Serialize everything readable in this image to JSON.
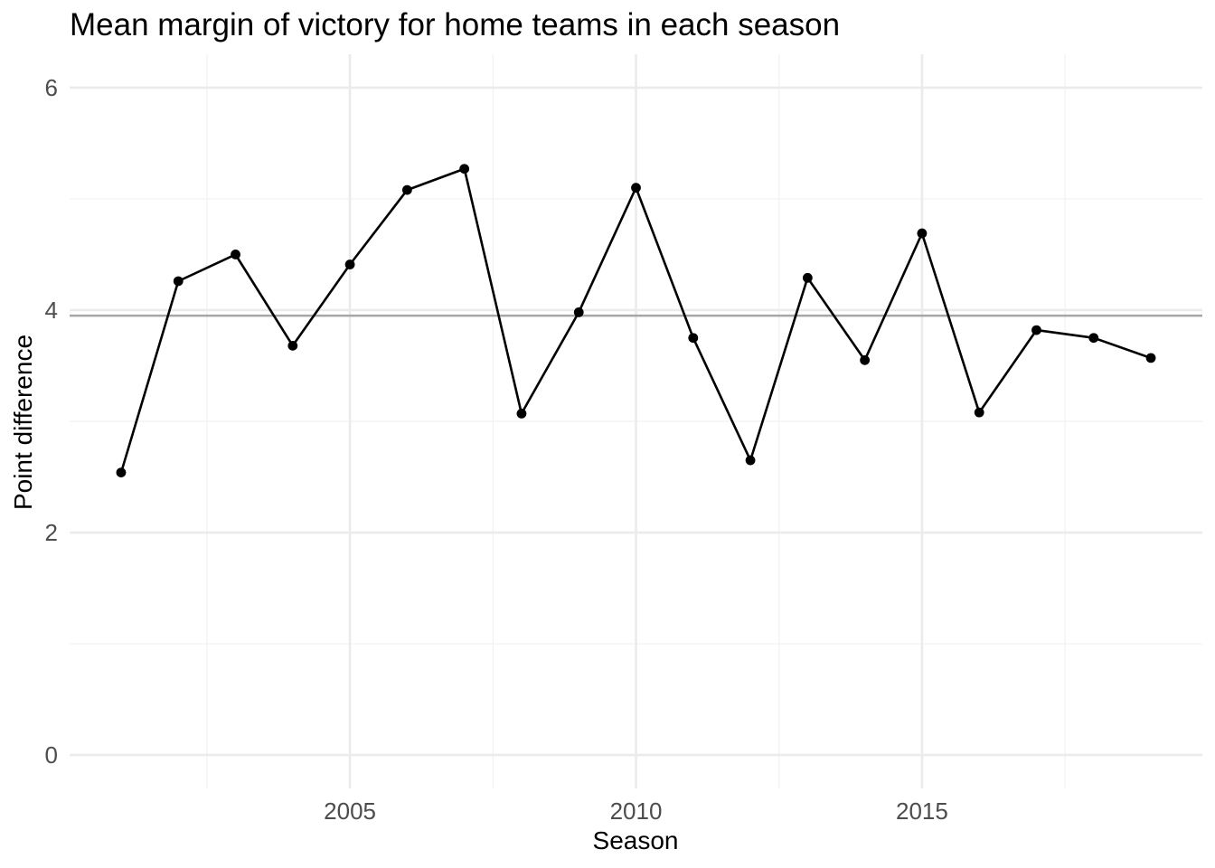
{
  "chart_data": {
    "type": "line",
    "title": "Mean margin of victory for home teams in each season",
    "xlabel": "Season",
    "ylabel": "Point difference",
    "x": [
      2001,
      2002,
      2003,
      2004,
      2005,
      2006,
      2007,
      2008,
      2009,
      2010,
      2011,
      2012,
      2013,
      2014,
      2015,
      2016,
      2017,
      2018,
      2019
    ],
    "series": [
      {
        "values": [
          2.54,
          4.26,
          4.5,
          3.68,
          4.41,
          5.08,
          5.27,
          3.07,
          3.98,
          5.1,
          3.75,
          2.65,
          4.29,
          3.55,
          4.69,
          3.08,
          3.82,
          3.75,
          3.57
        ]
      }
    ],
    "reference_line": {
      "y": 3.95
    },
    "xlim": [
      2000.1,
      2019.9
    ],
    "ylim": [
      -0.3,
      6.3
    ],
    "x_major_ticks": [
      2005,
      2010,
      2015
    ],
    "x_minor_ticks": [
      2002.5,
      2007.5,
      2012.5,
      2017.5
    ],
    "y_major_ticks": [
      0,
      2,
      4,
      6
    ],
    "y_minor_ticks": [
      1,
      3,
      5
    ],
    "grid": true,
    "legend": "none",
    "line_color": "#000000",
    "reference_line_color": "#a6a6a6"
  }
}
